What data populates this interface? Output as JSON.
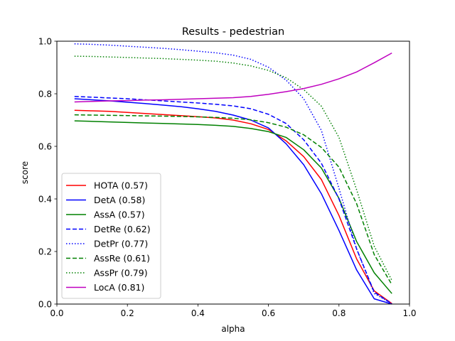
{
  "chart_data": {
    "type": "line",
    "title": "Results - pedestrian",
    "xlabel": "alpha",
    "ylabel": "score",
    "xlim": [
      0.0,
      1.0
    ],
    "ylim": [
      0.0,
      1.0
    ],
    "xticks": [
      "0.0",
      "0.2",
      "0.4",
      "0.6",
      "0.8",
      "1.0"
    ],
    "yticks": [
      "0.0",
      "0.2",
      "0.4",
      "0.6",
      "0.8",
      "1.0"
    ],
    "grid": false,
    "legend_position": "lower-left",
    "x": [
      0.05,
      0.1,
      0.15,
      0.2,
      0.25,
      0.3,
      0.35,
      0.4,
      0.45,
      0.5,
      0.55,
      0.6,
      0.65,
      0.7,
      0.75,
      0.8,
      0.85,
      0.9,
      0.95
    ],
    "series": [
      {
        "name": "HOTA (0.57)",
        "color": "#ff0000",
        "dash": "solid",
        "values": [
          0.737,
          0.735,
          0.733,
          0.729,
          0.725,
          0.721,
          0.717,
          0.713,
          0.708,
          0.7,
          0.686,
          0.664,
          0.621,
          0.561,
          0.474,
          0.337,
          0.172,
          0.05,
          0.002
        ]
      },
      {
        "name": "DetA (0.58)",
        "color": "#0000ff",
        "dash": "solid",
        "values": [
          0.781,
          0.777,
          0.773,
          0.768,
          0.763,
          0.757,
          0.751,
          0.743,
          0.733,
          0.719,
          0.7,
          0.67,
          0.61,
          0.53,
          0.42,
          0.28,
          0.13,
          0.02,
          0.0
        ]
      },
      {
        "name": "AssA (0.57)",
        "color": "#008000",
        "dash": "solid",
        "values": [
          0.697,
          0.695,
          0.693,
          0.691,
          0.689,
          0.687,
          0.685,
          0.683,
          0.68,
          0.676,
          0.668,
          0.656,
          0.634,
          0.587,
          0.518,
          0.402,
          0.238,
          0.119,
          0.04
        ]
      },
      {
        "name": "DetRe (0.62)",
        "color": "#0000ff",
        "dash": "dashed",
        "values": [
          0.79,
          0.787,
          0.784,
          0.781,
          0.777,
          0.773,
          0.769,
          0.765,
          0.76,
          0.754,
          0.743,
          0.722,
          0.687,
          0.625,
          0.536,
          0.4,
          0.21,
          0.045,
          0.001
        ]
      },
      {
        "name": "DetPr (0.77)",
        "color": "#0000ff",
        "dash": "dotted",
        "values": [
          0.99,
          0.988,
          0.985,
          0.981,
          0.977,
          0.973,
          0.968,
          0.962,
          0.956,
          0.947,
          0.931,
          0.901,
          0.852,
          0.781,
          0.661,
          0.44,
          0.21,
          0.04,
          0.001
        ]
      },
      {
        "name": "AssRe (0.61)",
        "color": "#008000",
        "dash": "dashed",
        "values": [
          0.72,
          0.719,
          0.718,
          0.717,
          0.716,
          0.715,
          0.714,
          0.712,
          0.71,
          0.707,
          0.701,
          0.69,
          0.673,
          0.644,
          0.596,
          0.521,
          0.382,
          0.188,
          0.074
        ]
      },
      {
        "name": "AssPr (0.79)",
        "color": "#008000",
        "dash": "dotted",
        "values": [
          0.943,
          0.942,
          0.94,
          0.938,
          0.936,
          0.934,
          0.931,
          0.928,
          0.924,
          0.917,
          0.906,
          0.889,
          0.861,
          0.816,
          0.753,
          0.634,
          0.435,
          0.22,
          0.09
        ]
      },
      {
        "name": "LocA (0.81)",
        "color": "#bf00bf",
        "dash": "solid",
        "values": [
          0.769,
          0.771,
          0.773,
          0.774,
          0.776,
          0.777,
          0.779,
          0.781,
          0.783,
          0.785,
          0.79,
          0.798,
          0.808,
          0.82,
          0.836,
          0.857,
          0.883,
          0.918,
          0.955
        ]
      }
    ]
  }
}
